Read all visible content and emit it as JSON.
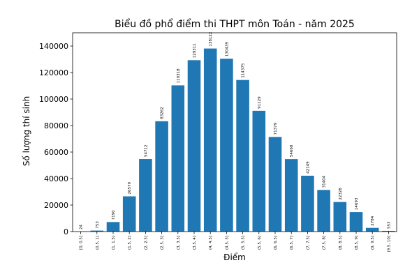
{
  "chart_data": {
    "type": "bar",
    "title": "Biểu đồ phổ điểm thi THPT môn Toán - năm 2025",
    "xlabel": "Điểm",
    "ylabel": "Số lượng thí sinh",
    "categories": [
      "[0, 0.5]",
      "(0.5, 1]",
      "(1, 1.5]",
      "(1.5, 2]",
      "(2, 2.5]",
      "(2.5, 3]",
      "(3, 3.5]",
      "(3.5, 4]",
      "(4, 4.5]",
      "(4.5, 5]",
      "(5, 5.5]",
      "(5.5, 6]",
      "(6, 6.5]",
      "(6.5, 7]",
      "(7, 7.5]",
      "(7.5, 8]",
      "(8, 8.5]",
      "(8.5, 9]",
      "(9, 9.5]",
      "(9.5, 10]"
    ],
    "values": [
      24,
      753,
      7190,
      26579,
      54712,
      83262,
      110318,
      129311,
      138122,
      130439,
      114375,
      91129,
      71379,
      54668,
      42149,
      31404,
      22328,
      14693,
      2784,
      553
    ],
    "ylim": [
      0,
      150000
    ],
    "yticks": [
      0,
      20000,
      40000,
      60000,
      80000,
      100000,
      120000,
      140000
    ],
    "grid": false,
    "bar_color": "#1f77b4"
  }
}
